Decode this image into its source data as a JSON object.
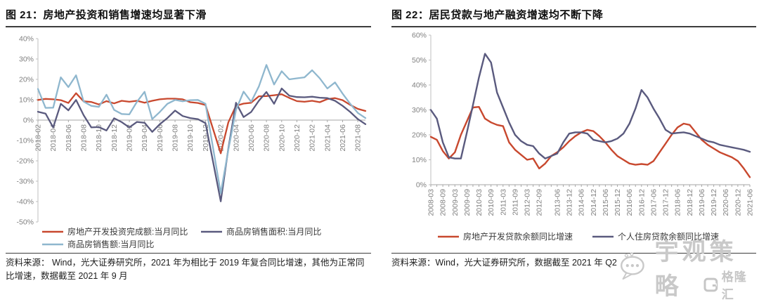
{
  "left_panel": {
    "source": "资料来源： Wind，光大证券研究所，2021 年为相比于 2019 年复合同比增速，其他为正常同比增速，数据截至 2021 年 9 月"
  },
  "right_panel": {
    "source": "资料来源：Wind，光大证券研究所，数据截至 2021 年 Q2"
  },
  "watermark": {
    "wechat_icon": "chat-bubble-icon",
    "brand": "宇观策略",
    "logo_icon": "gelonghui-g-icon",
    "logo_text": "格隆汇"
  },
  "colors": {
    "series_red": "#C8482E",
    "series_purple": "#5A5A7E",
    "series_lightblue": "#8FB7CE",
    "axis_line": "#bfbfbf",
    "baseline": "#a6a6a6",
    "tick_text": "#7f7f7f"
  },
  "chart_data": [
    {
      "type": "line",
      "title": "图 21：房地产投资和销售增速均显著下滑",
      "xlabel": "",
      "ylabel": "",
      "ylim": [
        -50,
        40
      ],
      "y_step": 10,
      "x_axis_at": 0,
      "grid": false,
      "legend_position": "bottom",
      "y_tick_labels": [
        "40%",
        "30%",
        "20%",
        "10%",
        "0%",
        "-10%",
        "-20%",
        "-30%",
        "-40%",
        "-50%"
      ],
      "x": [
        "2018-02",
        "2018-03",
        "2018-04",
        "2018-05",
        "2018-06",
        "2018-07",
        "2018-08",
        "2018-09",
        "2018-10",
        "2018-11",
        "2018-12",
        "2019-01",
        "2019-02",
        "2019-03",
        "2019-04",
        "2019-05",
        "2019-06",
        "2019-07",
        "2019-08",
        "2019-09",
        "2019-10",
        "2019-11",
        "2019-12",
        "2020-01",
        "2020-02",
        "2020-03",
        "2020-04",
        "2020-05",
        "2020-06",
        "2020-07",
        "2020-08",
        "2020-09",
        "2020-10",
        "2020-11",
        "2020-12",
        "2021-01",
        "2021-02",
        "2021-03",
        "2021-04",
        "2021-05",
        "2021-06",
        "2021-07",
        "2021-08",
        "2021-09"
      ],
      "x_label_idx": [
        0,
        2,
        4,
        6,
        8,
        10,
        12,
        14,
        16,
        18,
        20,
        22,
        24,
        26,
        28,
        30,
        32,
        34,
        36,
        38,
        40,
        42
      ],
      "series": [
        {
          "name": "房地产开发投资完成额:当月同比",
          "color": "#C8482E",
          "values": [
            9.9,
            10.4,
            10.2,
            9.8,
            8.4,
            13.2,
            9.2,
            8.9,
            7.7,
            9.3,
            8.2,
            9.5,
            9.0,
            9.5,
            8.5,
            9.5,
            10.2,
            10.5,
            10.5,
            10.2,
            8.8,
            8.4,
            7.4,
            -4.5,
            -16.3,
            -1.1,
            7.0,
            8.1,
            8.5,
            11.7,
            11.8,
            12.2,
            12.7,
            10.9,
            9.3,
            9.0,
            9.5,
            8.8,
            10.3,
            10.8,
            9.8,
            7.5,
            5.5,
            4.5
          ]
        },
        {
          "name": "商品房销售面积:当月同比",
          "color": "#5A5A7E",
          "values": [
            4.1,
            3.2,
            -3.6,
            8.0,
            4.8,
            9.9,
            2.4,
            -3.6,
            -3.4,
            -5.1,
            0.9,
            -1.0,
            -3.6,
            -0.9,
            -1.3,
            -5.8,
            -2.0,
            1.0,
            4.7,
            2.0,
            1.0,
            0.5,
            -1.5,
            -20.7,
            -39.9,
            -14.0,
            8.5,
            1.5,
            4.0,
            9.5,
            13.8,
            8.0,
            15.5,
            12.0,
            11.3,
            11.2,
            11.5,
            11.0,
            10.8,
            9.5,
            7.0,
            4.0,
            0.5,
            -2.0
          ]
        },
        {
          "name": "商品房销售额:当月同比",
          "color": "#8FB7CE",
          "values": [
            15.3,
            6.0,
            6.1,
            21.0,
            16.2,
            22.0,
            9.1,
            7.0,
            6.5,
            12.5,
            5.0,
            3.0,
            2.8,
            9.0,
            13.9,
            0.5,
            4.0,
            8.0,
            9.9,
            9.2,
            9.8,
            9.9,
            8.0,
            -14.0,
            -35.9,
            -14.6,
            5.0,
            14.0,
            9.0,
            16.5,
            27.1,
            17.5,
            24.0,
            20.0,
            20.5,
            21.0,
            24.5,
            20.5,
            15.5,
            18.5,
            13.0,
            8.0,
            3.5,
            1.0
          ]
        }
      ]
    },
    {
      "type": "line",
      "title": "图 22：居民贷款与地产融资增速均不断下降",
      "xlabel": "",
      "ylabel": "",
      "ylim": [
        0,
        60
      ],
      "y_step": 10,
      "x_axis_at": 0,
      "grid": false,
      "legend_position": "bottom",
      "minor_ticks_every_point": true,
      "y_tick_labels": [
        "60%",
        "50%",
        "40%",
        "30%",
        "20%",
        "10%",
        "0%"
      ],
      "x": [
        "2008-03",
        "2008-06",
        "2008-09",
        "2008-12",
        "2009-03",
        "2009-06",
        "2009-09",
        "2009-12",
        "2010-03",
        "2010-06",
        "2010-09",
        "2010-12",
        "2011-03",
        "2011-06",
        "2011-09",
        "2011-12",
        "2012-03",
        "2012-06",
        "2012-09",
        "2012-12",
        "2013-03",
        "2013-06",
        "2013-09",
        "2013-12",
        "2014-03",
        "2014-06",
        "2014-09",
        "2014-12",
        "2015-03",
        "2015-06",
        "2015-09",
        "2015-12",
        "2016-03",
        "2016-06",
        "2016-09",
        "2016-12",
        "2017-03",
        "2017-06",
        "2017-09",
        "2017-12",
        "2018-03",
        "2018-06",
        "2018-09",
        "2018-12",
        "2019-03",
        "2019-06",
        "2019-09",
        "2019-12",
        "2020-03",
        "2020-06",
        "2020-09",
        "2020-12",
        "2021-03",
        "2021-06"
      ],
      "x_label_idx": [
        0,
        2,
        4,
        6,
        8,
        10,
        12,
        14,
        16,
        18,
        21,
        23,
        25,
        27,
        29,
        31,
        33,
        35,
        37,
        39,
        41,
        43,
        45,
        47,
        49,
        51,
        53
      ],
      "series": [
        {
          "name": "房地产开发贷款余额同比增速",
          "color": "#C8482E",
          "values": [
            19.2,
            18.0,
            13.5,
            10.5,
            13.0,
            20.0,
            25.5,
            31.0,
            31.2,
            26.5,
            25.0,
            24.0,
            23.5,
            17.0,
            14.0,
            12.0,
            10.0,
            10.5,
            6.5,
            8.5,
            11.5,
            13.0,
            15.0,
            17.5,
            19.5,
            21.0,
            22.0,
            21.5,
            19.5,
            17.0,
            14.0,
            11.5,
            10.0,
            8.5,
            8.0,
            8.3,
            8.0,
            9.5,
            13.0,
            16.5,
            20.0,
            23.0,
            24.5,
            24.0,
            21.0,
            18.0,
            16.0,
            14.5,
            13.0,
            12.0,
            11.0,
            9.5,
            6.5,
            3.0
          ]
        },
        {
          "name": "个人住房贷款余额同比增速",
          "color": "#5A5A7E",
          "values": [
            30.0,
            26.5,
            17.0,
            11.0,
            10.5,
            10.5,
            21.0,
            32.0,
            43.0,
            52.5,
            49.0,
            37.0,
            31.0,
            25.0,
            20.0,
            17.5,
            16.0,
            15.5,
            12.5,
            10.5,
            11.5,
            12.5,
            17.0,
            20.5,
            21.0,
            21.0,
            20.5,
            18.0,
            17.5,
            17.0,
            17.5,
            18.5,
            20.5,
            24.5,
            30.5,
            38.0,
            35.0,
            30.5,
            26.5,
            22.0,
            20.5,
            20.8,
            21.0,
            20.5,
            19.5,
            18.5,
            17.5,
            17.0,
            16.0,
            15.5,
            15.0,
            14.5,
            14.0,
            13.2
          ]
        }
      ]
    }
  ]
}
